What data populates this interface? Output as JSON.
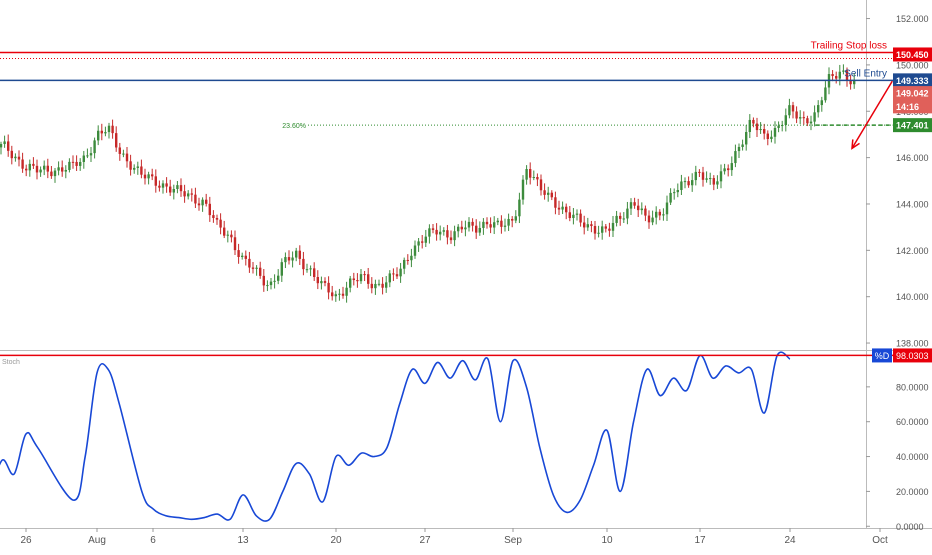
{
  "chart_data": [
    {
      "type": "candlestick",
      "title": "",
      "y_axis": {
        "ticks": [
          138,
          140,
          142,
          144,
          146,
          148,
          150,
          152
        ],
        "tick_labels": [
          "138.000",
          "140.000",
          "142.000",
          "144.000",
          "146.000",
          "148.000",
          "150.000",
          "152.000"
        ],
        "ylim": [
          137.7,
          152.8
        ]
      },
      "x_axis": {
        "tick_labels": [
          "26",
          "Aug",
          "6",
          "13",
          "20",
          "27",
          "Sep",
          "10",
          "17",
          "24",
          "Oct"
        ],
        "dates": [
          "2018-07-26",
          "2018-08-01",
          "2018-08-06",
          "2018-08-13",
          "2018-08-20",
          "2018-08-27",
          "2018-09-03",
          "2018-09-10",
          "2018-09-17",
          "2018-09-24",
          "2018-10-01"
        ]
      },
      "price_path": [
        [
          "2018-07-23",
          146.2
        ],
        [
          "2018-07-24",
          146.5
        ],
        [
          "2018-07-25",
          146.1
        ],
        [
          "2018-07-26",
          145.6
        ],
        [
          "2018-07-27",
          145.4
        ],
        [
          "2018-07-30",
          145.6
        ],
        [
          "2018-07-31",
          146.0
        ],
        [
          "2018-08-01",
          147.0
        ],
        [
          "2018-08-02",
          147.2
        ],
        [
          "2018-08-03",
          146.3
        ],
        [
          "2018-08-05",
          145.2
        ],
        [
          "2018-08-07",
          144.8
        ],
        [
          "2018-08-08",
          144.5
        ],
        [
          "2018-08-09",
          144.3
        ],
        [
          "2018-08-10",
          144.1
        ],
        [
          "2018-08-11",
          143.0
        ],
        [
          "2018-08-12",
          142.6
        ],
        [
          "2018-08-13",
          141.6
        ],
        [
          "2018-08-14",
          141.0
        ],
        [
          "2018-08-15",
          140.5
        ],
        [
          "2018-08-16",
          141.4
        ],
        [
          "2018-08-17",
          141.8
        ],
        [
          "2018-08-18",
          141.2
        ],
        [
          "2018-08-19",
          140.4
        ],
        [
          "2018-08-20",
          140.0
        ],
        [
          "2018-08-21",
          140.6
        ],
        [
          "2018-08-22",
          140.8
        ],
        [
          "2018-08-23",
          140.5
        ],
        [
          "2018-08-24",
          140.7
        ],
        [
          "2018-08-25",
          141.0
        ],
        [
          "2018-08-26",
          142.1
        ],
        [
          "2018-08-27",
          142.6
        ],
        [
          "2018-08-28",
          142.8
        ],
        [
          "2018-08-29",
          142.7
        ],
        [
          "2018-08-30",
          143.0
        ],
        [
          "2018-08-31",
          142.9
        ],
        [
          "2018-09-01",
          143.3
        ],
        [
          "2018-09-02",
          143.0
        ],
        [
          "2018-09-03",
          143.2
        ],
        [
          "2018-09-04",
          145.6
        ],
        [
          "2018-09-05",
          144.6
        ],
        [
          "2018-09-06",
          144.2
        ],
        [
          "2018-09-07",
          143.6
        ],
        [
          "2018-09-08",
          143.2
        ],
        [
          "2018-09-09",
          143.0
        ],
        [
          "2018-09-10",
          142.8
        ],
        [
          "2018-09-11",
          143.4
        ],
        [
          "2018-09-12",
          144.2
        ],
        [
          "2018-09-13",
          143.2
        ],
        [
          "2018-09-14",
          143.6
        ],
        [
          "2018-09-15",
          144.6
        ],
        [
          "2018-09-16",
          144.8
        ],
        [
          "2018-09-17",
          145.5
        ],
        [
          "2018-09-18",
          144.8
        ],
        [
          "2018-09-19",
          145.4
        ],
        [
          "2018-09-20",
          146.5
        ],
        [
          "2018-09-21",
          147.5
        ],
        [
          "2018-09-22",
          146.9
        ],
        [
          "2018-09-23",
          147.3
        ],
        [
          "2018-09-24",
          148.0
        ],
        [
          "2018-09-25",
          147.6
        ],
        [
          "2018-09-26",
          147.9
        ],
        [
          "2018-09-27",
          149.3
        ],
        [
          "2018-09-28",
          149.8
        ],
        [
          "2018-09-29",
          149.2
        ]
      ],
      "levels": [
        {
          "name": "Trailing Stop loss",
          "value": 150.45,
          "label": "150.450",
          "color": "#e8000b",
          "style": "solid+dotted"
        },
        {
          "name": "Sell Entry",
          "value": 149.333,
          "label": "149.333",
          "color": "#1e4a90",
          "style": "solid"
        },
        {
          "name": "",
          "value": 147.401,
          "label": "147.401",
          "color": "#2e8b2e",
          "style": "dashed"
        },
        {
          "name": "23.60%",
          "value": 147.401,
          "color": "#2e8b2e",
          "style": "dotted"
        }
      ],
      "price_tags": [
        {
          "label": "149.042",
          "value": 149.0,
          "color": "#e0605a"
        },
        {
          "label": "14:16",
          "value": 148.6,
          "color": "#e0605a"
        }
      ],
      "arrow": {
        "from": [
          "2018-09-29",
          149.3
        ],
        "to": [
          "2018-10-01",
          146.4
        ],
        "color": "#e8000b"
      },
      "colors": {
        "up": "#26a69a",
        "down": "#e0605a",
        "candle_up": "#3d8b3d",
        "candle_down": "#c62828"
      }
    },
    {
      "type": "line",
      "name": "Stoch",
      "y_axis": {
        "ticks": [
          0,
          20,
          40,
          60,
          80
        ],
        "tick_labels": [
          "0.0000",
          "20.0000",
          "40.0000",
          "60.0000",
          "80.0000"
        ],
        "ylim": [
          -1,
          100
        ]
      },
      "series": [
        {
          "name": "%D",
          "color": "#1848d6",
          "values": [
            [
              "2018-07-23",
              20
            ],
            [
              "2018-07-24",
              38
            ],
            [
              "2018-07-25",
              30
            ],
            [
              "2018-07-26",
              53
            ],
            [
              "2018-07-27",
              45
            ],
            [
              "2018-07-30",
              15
            ],
            [
              "2018-07-31",
              40
            ],
            [
              "2018-08-01",
              88
            ],
            [
              "2018-08-02",
              90
            ],
            [
              "2018-08-03",
              70
            ],
            [
              "2018-08-05",
              20
            ],
            [
              "2018-08-06",
              10
            ],
            [
              "2018-08-07",
              6
            ],
            [
              "2018-08-08",
              5
            ],
            [
              "2018-08-09",
              4
            ],
            [
              "2018-08-10",
              5
            ],
            [
              "2018-08-11",
              7
            ],
            [
              "2018-08-12",
              4
            ],
            [
              "2018-08-13",
              18
            ],
            [
              "2018-08-14",
              6
            ],
            [
              "2018-08-15",
              4
            ],
            [
              "2018-08-16",
              20
            ],
            [
              "2018-08-17",
              36
            ],
            [
              "2018-08-18",
              30
            ],
            [
              "2018-08-19",
              14
            ],
            [
              "2018-08-20",
              40
            ],
            [
              "2018-08-21",
              35
            ],
            [
              "2018-08-22",
              42
            ],
            [
              "2018-08-23",
              40
            ],
            [
              "2018-08-24",
              45
            ],
            [
              "2018-08-25",
              70
            ],
            [
              "2018-08-26",
              90
            ],
            [
              "2018-08-27",
              82
            ],
            [
              "2018-08-28",
              94
            ],
            [
              "2018-08-29",
              85
            ],
            [
              "2018-08-30",
              95
            ],
            [
              "2018-08-31",
              84
            ],
            [
              "2018-09-01",
              96
            ],
            [
              "2018-09-02",
              60
            ],
            [
              "2018-09-03",
              95
            ],
            [
              "2018-09-04",
              80
            ],
            [
              "2018-09-05",
              45
            ],
            [
              "2018-09-06",
              18
            ],
            [
              "2018-09-07",
              8
            ],
            [
              "2018-09-08",
              15
            ],
            [
              "2018-09-09",
              35
            ],
            [
              "2018-09-10",
              55
            ],
            [
              "2018-09-11",
              20
            ],
            [
              "2018-09-12",
              60
            ],
            [
              "2018-09-13",
              90
            ],
            [
              "2018-09-14",
              75
            ],
            [
              "2018-09-15",
              85
            ],
            [
              "2018-09-16",
              78
            ],
            [
              "2018-09-17",
              98
            ],
            [
              "2018-09-18",
              85
            ],
            [
              "2018-09-19",
              92
            ],
            [
              "2018-09-20",
              88
            ],
            [
              "2018-09-21",
              90
            ],
            [
              "2018-09-22",
              65
            ],
            [
              "2018-09-23",
              98
            ],
            [
              "2018-09-24",
              96
            ]
          ]
        }
      ],
      "levels": [
        {
          "value": 98.0303,
          "label": "98.0303",
          "color": "#e8000b"
        }
      ],
      "badge": {
        "label": "%D",
        "color": "#1848d6"
      }
    }
  ],
  "labels": {
    "trailing_stop": "Trailing Stop loss",
    "sell_entry": "Sell Entry",
    "fib": "23.60%",
    "stoch": "Stoch"
  }
}
